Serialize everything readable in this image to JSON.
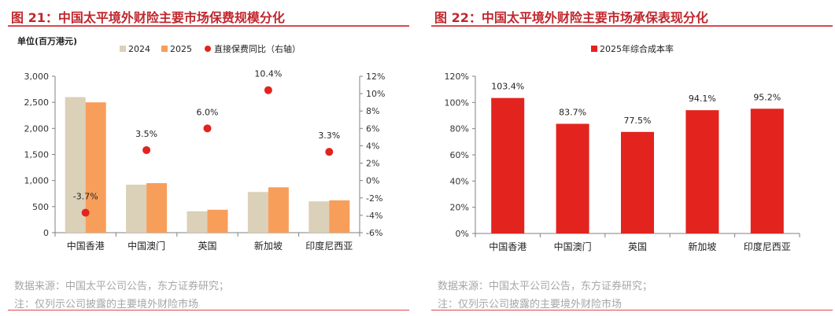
{
  "left_panel": {
    "figure_title": "图 21：中国太平境外财险主要市场保费规模分化",
    "unit_label": "单位(百万港元)",
    "source_note": "数据来源：中国太平公司公告，东方证券研究；",
    "footnote": "注：仅列示公司披露的主要境外财险市场"
  },
  "right_panel": {
    "figure_title": "图 22：中国太平境外财险主要市场承保表现分化",
    "source_note": "数据来源：中国太平公司公告，东方证券研究；",
    "footnote": "注：仅列示公司披露的主要境外财险市场"
  },
  "chart_data": [
    {
      "type": "bar",
      "categories": [
        "中国香港",
        "中国澳门",
        "英国",
        "新加坡",
        "印度尼西亚"
      ],
      "series": [
        {
          "name": "2024",
          "axis": "left",
          "color": "#dbd0b8",
          "values": [
            2600,
            920,
            410,
            780,
            600
          ]
        },
        {
          "name": "2025",
          "axis": "left",
          "color": "#f89e5b",
          "values": [
            2500,
            950,
            440,
            870,
            620
          ]
        },
        {
          "name": "直接保费同比（右轴）",
          "axis": "right",
          "kind": "scatter",
          "color": "#e3231d",
          "values": [
            -3.7,
            3.5,
            6.0,
            10.4,
            3.3
          ],
          "labels": [
            "-3.7%",
            "3.5%",
            "6.0%",
            "10.4%",
            "3.3%"
          ]
        }
      ],
      "y_left": {
        "min": 0,
        "max": 3000,
        "ticks": [
          "0",
          "500",
          "1,000",
          "1,500",
          "2,000",
          "2,500",
          "3,000"
        ]
      },
      "y_right": {
        "min": -6,
        "max": 12,
        "ticks": [
          "-6%",
          "-4%",
          "-2%",
          "0%",
          "2%",
          "4%",
          "6%",
          "8%",
          "10%",
          "12%"
        ]
      },
      "grid": false,
      "legend": "top"
    },
    {
      "type": "bar",
      "categories": [
        "中国香港",
        "中国澳门",
        "英国",
        "新加坡",
        "印度尼西亚"
      ],
      "series": [
        {
          "name": "2025年综合成本率",
          "color": "#e3231d",
          "values": [
            103.4,
            83.7,
            77.5,
            94.1,
            95.2
          ],
          "labels": [
            "103.4%",
            "83.7%",
            "77.5%",
            "94.1%",
            "95.2%"
          ]
        }
      ],
      "y": {
        "min": 0,
        "max": 120,
        "ticks": [
          "0%",
          "20%",
          "40%",
          "60%",
          "80%",
          "100%",
          "120%"
        ]
      },
      "grid": false,
      "legend": "top"
    }
  ]
}
